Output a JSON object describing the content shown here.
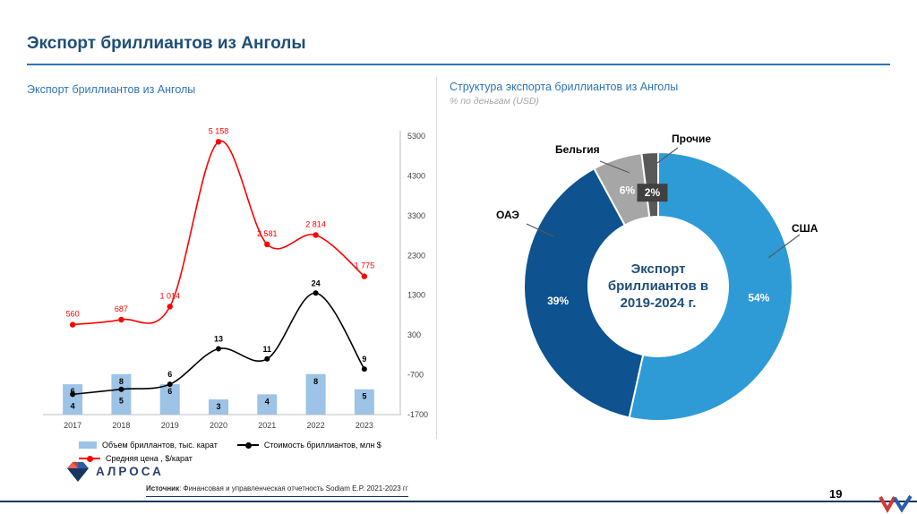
{
  "slide": {
    "title": "Экспорт бриллиантов из Анголы",
    "page_number": "19",
    "logo_text": "АЛРОСА",
    "source": {
      "label": "Источник",
      "text": ": Финансовая и управленческая отчетность  Sodiam E.P. 2021-2023 гг"
    }
  },
  "chart_data": [
    {
      "type": "bar",
      "title": "Экспорт бриллиантов из Анголы",
      "categories": [
        "2017",
        "2018",
        "2019",
        "2020",
        "2021",
        "2022",
        "2023"
      ],
      "series": [
        {
          "name": "Объем бриллантов, тыс. карат",
          "kind": "bar",
          "axis": "primary",
          "color": "#9DC3E6",
          "values": [
            6,
            8,
            6,
            3,
            4,
            8,
            5
          ]
        },
        {
          "name": "Стоимость бриллиантов, млн $",
          "kind": "line",
          "axis": "primary",
          "color": "#000000",
          "values": [
            4,
            5,
            6,
            13,
            11,
            24,
            9
          ]
        },
        {
          "name": "Средняя цена , $/карат",
          "kind": "line",
          "axis": "secondary",
          "color": "#FF0000",
          "values": [
            560,
            687,
            1014,
            5158,
            2581,
            2814,
            1775
          ],
          "value_labels": [
            "560",
            "687",
            "1 014",
            "5 158",
            "2 581",
            "2 814",
            "1 775"
          ]
        }
      ],
      "secondary_axis": {
        "ticks": [
          5300,
          4300,
          3300,
          2300,
          1300,
          300,
          -700,
          -1700
        ],
        "range": [
          -1700,
          5300
        ]
      },
      "primary_axis": {
        "range": [
          0,
          55
        ],
        "visible": false
      },
      "legend_position": "bottom",
      "grid": false
    },
    {
      "type": "pie",
      "donut": true,
      "title": "Структура экспорта бриллиантов из Анголы",
      "subtitle": "% по деньгам (USD)",
      "center_label": "Экспорт бриллиантов в 2019-2024 г.",
      "slices": [
        {
          "label": "США",
          "value": 54,
          "pct_label": "54%",
          "color": "#2E9BD6"
        },
        {
          "label": "ОАЭ",
          "value": 39,
          "pct_label": "39%",
          "color": "#0E5290"
        },
        {
          "label": "Бельгия",
          "value": 6,
          "pct_label": "6%",
          "color": "#A6A6A6"
        },
        {
          "label": "Прочие",
          "value": 2,
          "pct_label": "2%",
          "color": "#595959"
        }
      ],
      "callout_box_color": "#404040"
    }
  ]
}
